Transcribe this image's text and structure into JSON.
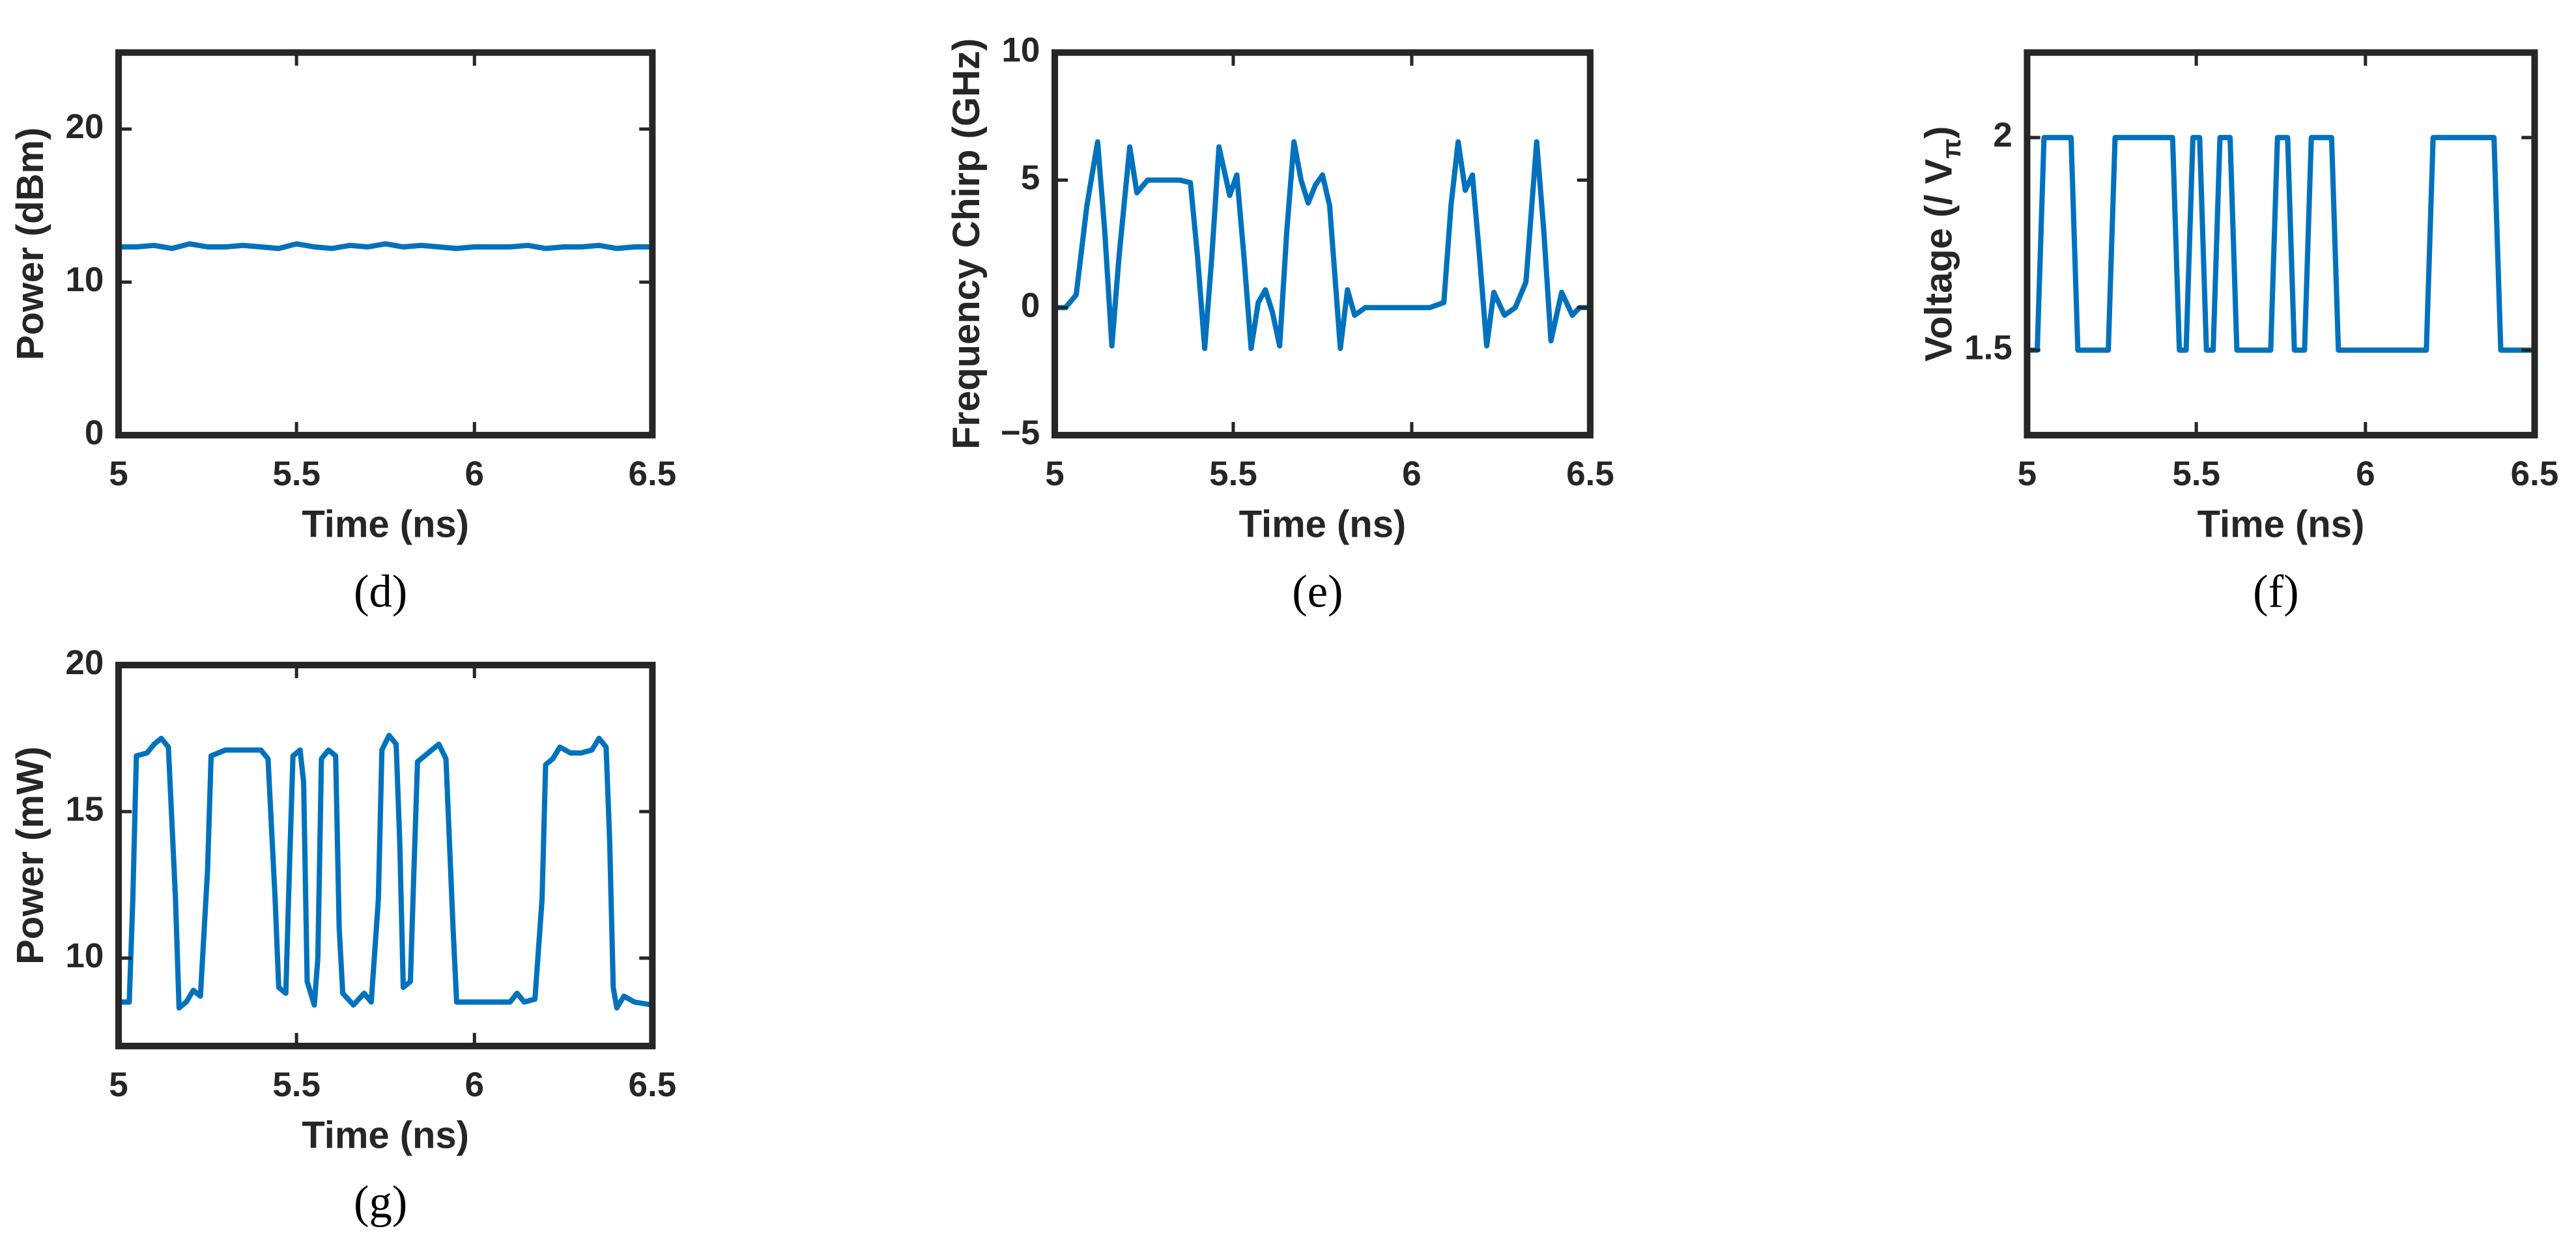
{
  "chart_data": [
    {
      "type": "line",
      "caption": "(d)",
      "xlabel": "Time (ns)",
      "ylabel": [
        "Power (dBm)"
      ],
      "xlim": [
        5,
        6.5
      ],
      "xticks": [
        5,
        5.5,
        6,
        6.5
      ],
      "ylim": [
        0,
        25
      ],
      "yticks": [
        0,
        10,
        20
      ],
      "color": "#0072bd",
      "x": [
        5,
        5.05,
        5.1,
        5.15,
        5.2,
        5.25,
        5.3,
        5.35,
        5.4,
        5.45,
        5.5,
        5.55,
        5.6,
        5.65,
        5.7,
        5.75,
        5.8,
        5.85,
        5.9,
        5.95,
        6,
        6.05,
        6.1,
        6.15,
        6.2,
        6.25,
        6.3,
        6.35,
        6.4,
        6.45,
        6.5
      ],
      "values": [
        12.3,
        12.3,
        12.4,
        12.2,
        12.5,
        12.3,
        12.3,
        12.4,
        12.3,
        12.2,
        12.5,
        12.3,
        12.2,
        12.4,
        12.3,
        12.5,
        12.3,
        12.4,
        12.3,
        12.2,
        12.3,
        12.3,
        12.3,
        12.4,
        12.2,
        12.3,
        12.3,
        12.4,
        12.2,
        12.3,
        12.3
      ]
    },
    {
      "type": "line",
      "caption": "(e)",
      "xlabel": "Time (ns)",
      "ylabel": [
        "Frequency Chirp (GHz)"
      ],
      "xlim": [
        5,
        6.5
      ],
      "xticks": [
        5,
        5.5,
        6,
        6.5
      ],
      "ylim": [
        -5,
        10
      ],
      "yticks": [
        {
          "value": -5,
          "label": "−5"
        },
        0,
        5,
        10
      ],
      "color": "#0072bd",
      "x": [
        5,
        5.03,
        5.06,
        5.09,
        5.12,
        5.14,
        5.16,
        5.18,
        5.21,
        5.23,
        5.26,
        5.3,
        5.35,
        5.38,
        5.4,
        5.42,
        5.44,
        5.46,
        5.49,
        5.51,
        5.53,
        5.55,
        5.57,
        5.59,
        5.61,
        5.63,
        5.65,
        5.67,
        5.69,
        5.71,
        5.73,
        5.75,
        5.77,
        5.8,
        5.82,
        5.84,
        5.87,
        5.9,
        5.95,
        6,
        6.05,
        6.09,
        6.11,
        6.13,
        6.15,
        6.17,
        6.19,
        6.21,
        6.23,
        6.26,
        6.29,
        6.32,
        6.35,
        6.37,
        6.39,
        6.42,
        6.45,
        6.47,
        6.5
      ],
      "values": [
        0,
        0,
        0.5,
        4,
        6.5,
        3,
        -1.5,
        2,
        6.3,
        4.5,
        5,
        5,
        5,
        4.9,
        2,
        -1.6,
        2,
        6.3,
        4.4,
        5.2,
        2,
        -1.6,
        0.2,
        0.7,
        -0.2,
        -1.5,
        3,
        6.5,
        5,
        4.1,
        4.8,
        5.2,
        4,
        -1.6,
        0.7,
        -0.3,
        0,
        0,
        0,
        0,
        0,
        0.2,
        4,
        6.5,
        4.6,
        5.2,
        2,
        -1.5,
        0.6,
        -0.3,
        0,
        1,
        6.5,
        3,
        -1.3,
        0.6,
        -0.3,
        0,
        0
      ]
    },
    {
      "type": "line",
      "caption": "(f)",
      "xlabel": "Time (ns)",
      "ylabel": [
        "Voltage (/ V",
        "π",
        ")"
      ],
      "xlim": [
        5,
        6.5
      ],
      "xticks": [
        5,
        5.5,
        6,
        6.5
      ],
      "ylim": [
        1.3,
        2.2
      ],
      "yticks": [
        1.5,
        2
      ],
      "color": "#0072bd",
      "x": [
        5,
        5.03,
        5.05,
        5.13,
        5.15,
        5.24,
        5.26,
        5.43,
        5.45,
        5.47,
        5.49,
        5.51,
        5.53,
        5.55,
        5.57,
        5.6,
        5.62,
        5.72,
        5.74,
        5.77,
        5.79,
        5.82,
        5.84,
        5.9,
        5.92,
        6.18,
        6.2,
        6.38,
        6.4,
        6.5
      ],
      "values": [
        1.5,
        1.5,
        2,
        2,
        1.5,
        1.5,
        2,
        2,
        1.5,
        1.5,
        2,
        2,
        1.5,
        1.5,
        2,
        2,
        1.5,
        1.5,
        2,
        2,
        1.5,
        1.5,
        2,
        2,
        1.5,
        1.5,
        2,
        2,
        1.5,
        1.5
      ]
    },
    {
      "type": "line",
      "caption": "(g)",
      "xlabel": "Time (ns)",
      "ylabel": [
        "Power (mW)"
      ],
      "xlim": [
        5,
        6.5
      ],
      "xticks": [
        5,
        5.5,
        6,
        6.5
      ],
      "ylim": [
        7,
        20
      ],
      "yticks": [
        10,
        15,
        20
      ],
      "color": "#0072bd",
      "x": [
        5,
        5.03,
        5.04,
        5.05,
        5.08,
        5.1,
        5.12,
        5.14,
        5.16,
        5.17,
        5.19,
        5.21,
        5.23,
        5.25,
        5.26,
        5.3,
        5.35,
        5.4,
        5.42,
        5.44,
        5.45,
        5.47,
        5.48,
        5.49,
        5.51,
        5.52,
        5.53,
        5.55,
        5.56,
        5.57,
        5.59,
        5.61,
        5.62,
        5.63,
        5.66,
        5.69,
        5.71,
        5.73,
        5.74,
        5.76,
        5.78,
        5.79,
        5.8,
        5.82,
        5.83,
        5.84,
        5.87,
        5.9,
        5.92,
        5.94,
        5.95,
        6,
        6.05,
        6.1,
        6.12,
        6.14,
        6.17,
        6.19,
        6.2,
        6.22,
        6.24,
        6.27,
        6.3,
        6.33,
        6.35,
        6.37,
        6.38,
        6.39,
        6.4,
        6.42,
        6.45,
        6.5
      ],
      "values": [
        8.5,
        8.5,
        12,
        16.9,
        17,
        17.3,
        17.5,
        17.2,
        12,
        8.3,
        8.5,
        8.9,
        8.7,
        13,
        16.9,
        17.1,
        17.1,
        17.1,
        16.8,
        12,
        9,
        8.8,
        13,
        16.9,
        17.1,
        16,
        9.2,
        8.4,
        10,
        16.8,
        17.1,
        16.9,
        11,
        8.8,
        8.4,
        8.8,
        8.5,
        12,
        17.1,
        17.6,
        17.3,
        14,
        9,
        9.2,
        13,
        16.7,
        17,
        17.3,
        16.8,
        11,
        8.5,
        8.5,
        8.5,
        8.5,
        8.8,
        8.5,
        8.6,
        12,
        16.6,
        16.8,
        17.2,
        17,
        17,
        17.1,
        17.5,
        17.2,
        14,
        9,
        8.3,
        8.7,
        8.5,
        8.4
      ]
    }
  ]
}
